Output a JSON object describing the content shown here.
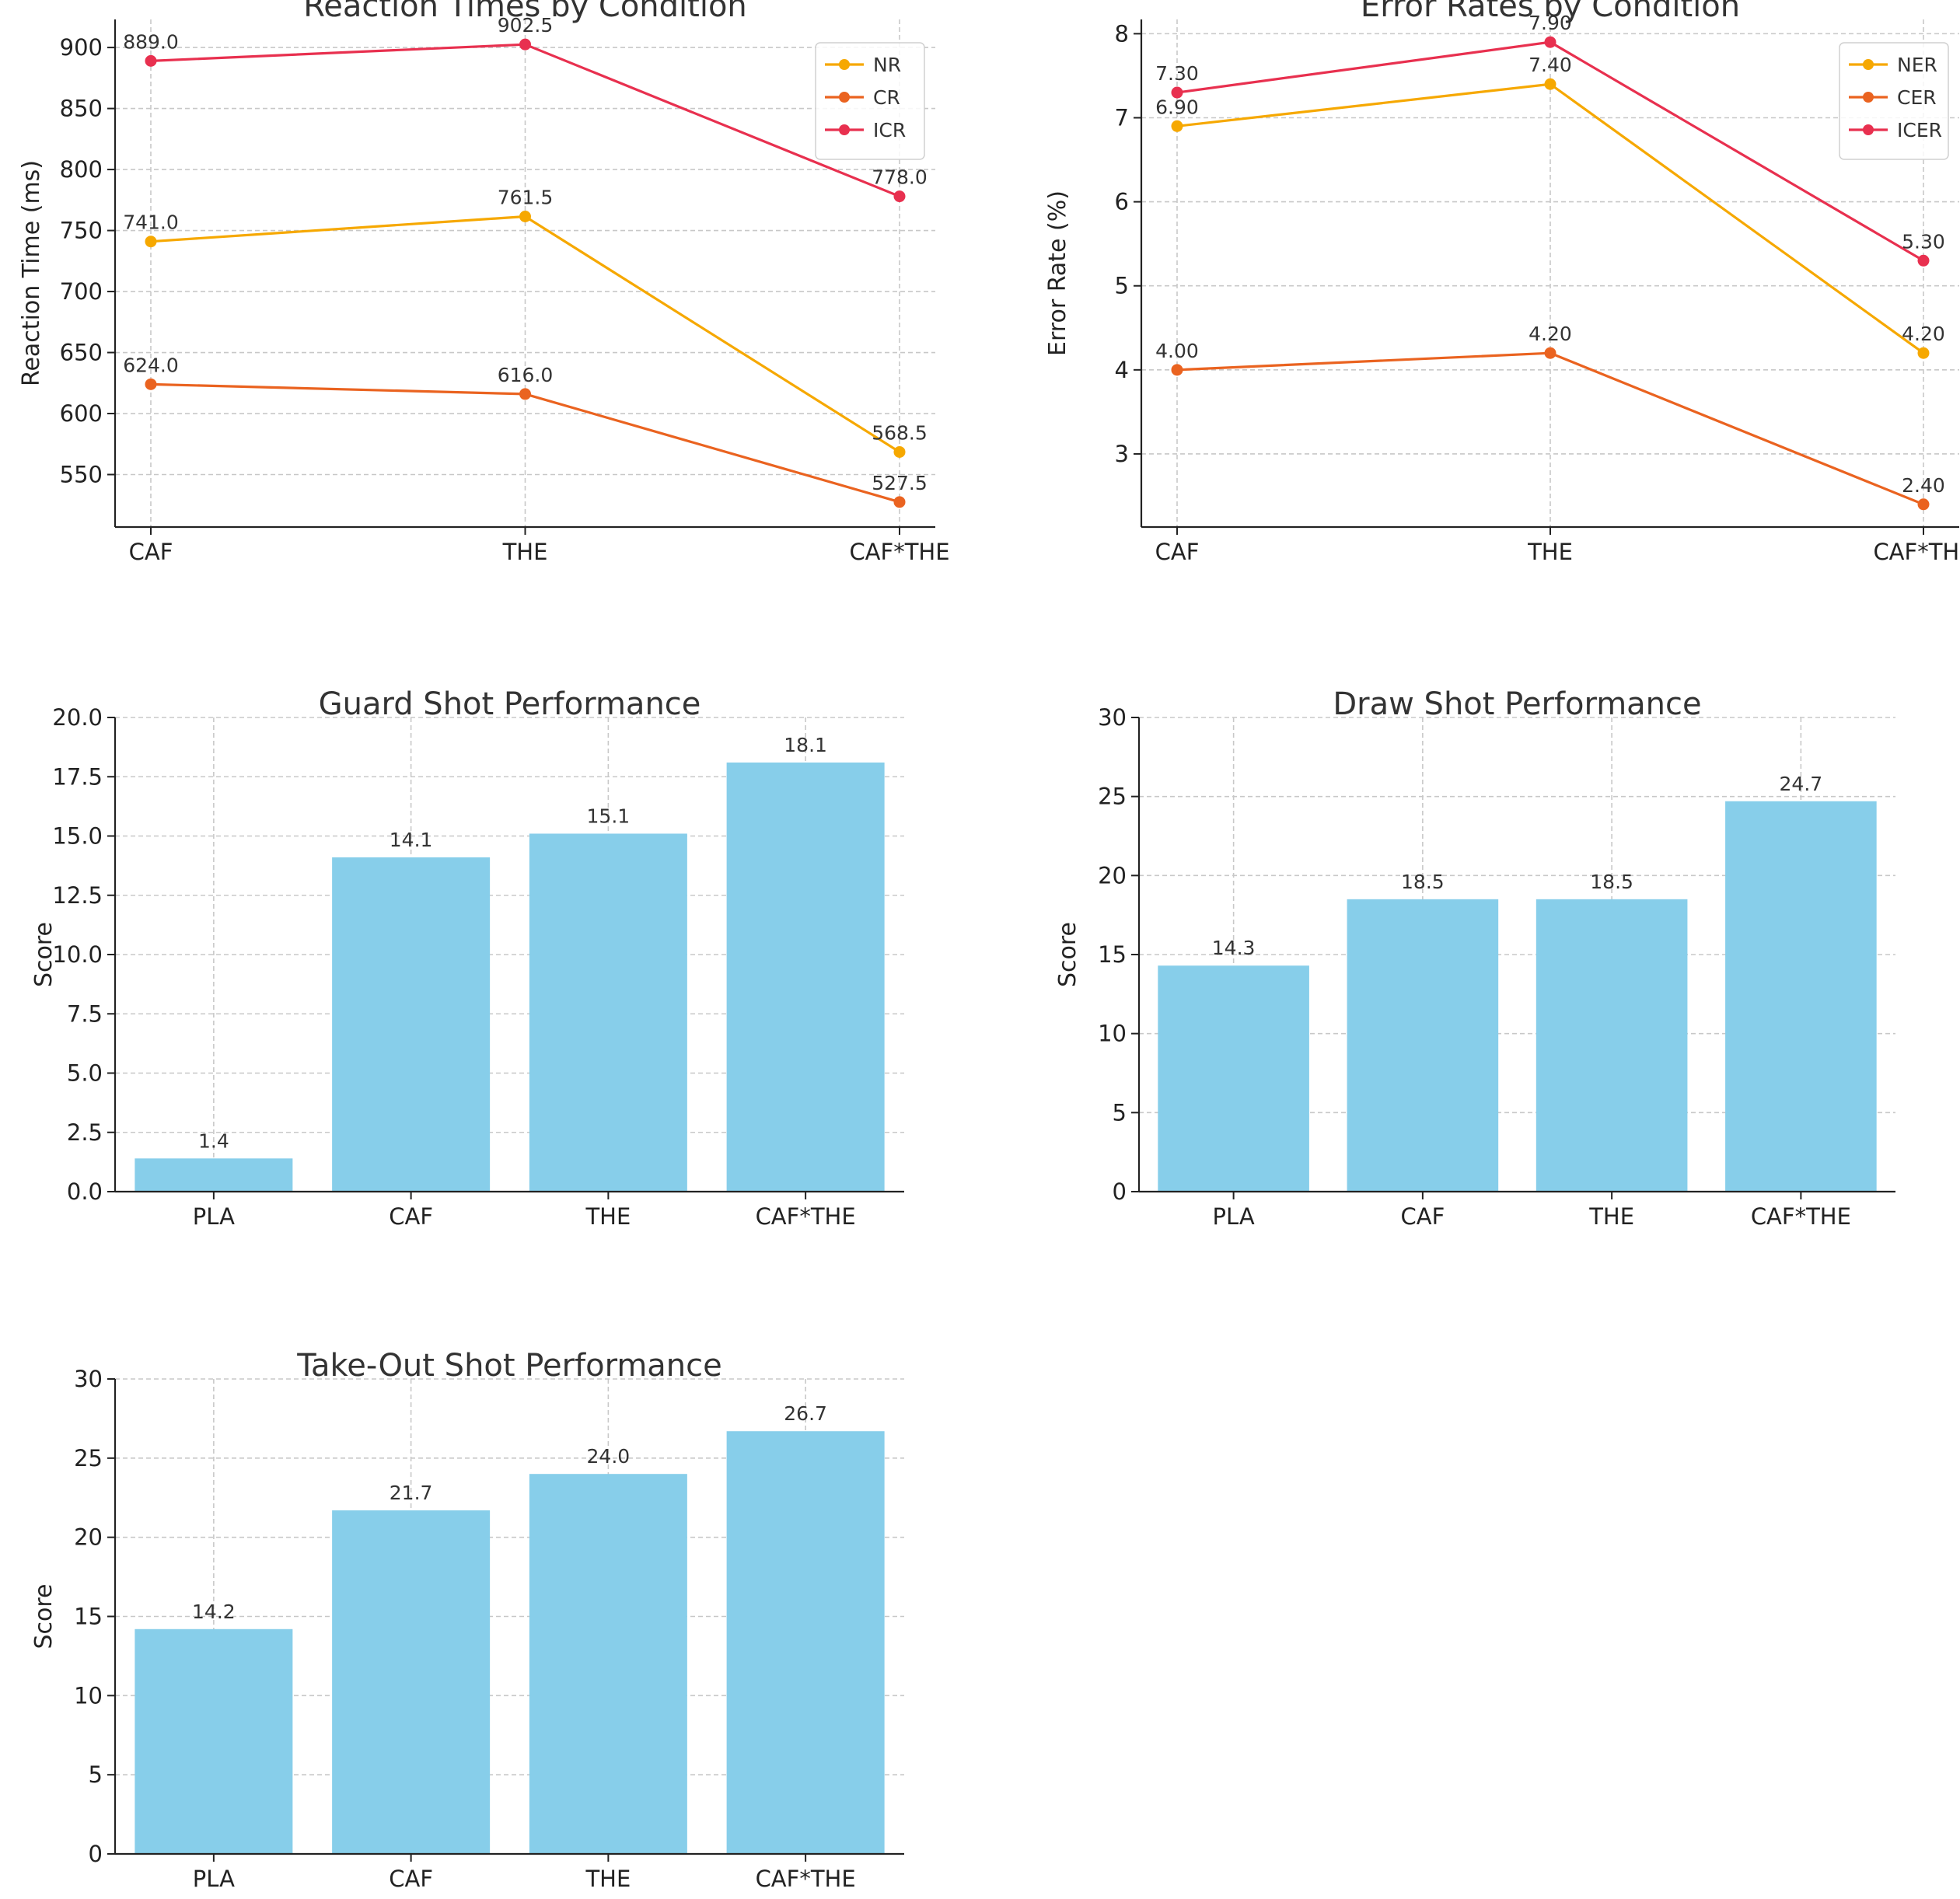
{
  "chart_data": [
    {
      "type": "line",
      "title": "Reaction Times by Condition",
      "xlabel": "",
      "ylabel": "Reaction Time (ms)",
      "categories": [
        "CAF",
        "THE",
        "CAF*THE"
      ],
      "ylim": [
        507,
        923
      ],
      "yticks": [
        550,
        600,
        650,
        700,
        750,
        800,
        850,
        900
      ],
      "tick_decimals": 0,
      "label_decimals": 1,
      "legend": "top-right",
      "series": [
        {
          "name": "NR",
          "color": "#f6a800",
          "values": [
            741.0,
            761.5,
            568.5
          ]
        },
        {
          "name": "CR",
          "color": "#ea6320",
          "values": [
            624.0,
            616.0,
            527.5
          ]
        },
        {
          "name": "ICR",
          "color": "#e8304f",
          "values": [
            889.0,
            902.5,
            778.0
          ]
        }
      ]
    },
    {
      "type": "line",
      "title": "Error Rates by Condition",
      "xlabel": "",
      "ylabel": "Error Rate (%)",
      "categories": [
        "CAF",
        "THE",
        "CAF*THE"
      ],
      "ylim": [
        2.13,
        8.17
      ],
      "yticks": [
        3,
        4,
        5,
        6,
        7,
        8
      ],
      "tick_decimals": 0,
      "label_decimals": 2,
      "legend": "top-right",
      "series": [
        {
          "name": "NER",
          "color": "#f6a800",
          "values": [
            6.9,
            7.4,
            4.2
          ]
        },
        {
          "name": "CER",
          "color": "#ea6320",
          "values": [
            4.0,
            4.2,
            2.4
          ]
        },
        {
          "name": "ICER",
          "color": "#e8304f",
          "values": [
            7.3,
            7.9,
            5.3
          ]
        }
      ]
    },
    {
      "type": "bar",
      "title": "Guard Shot Performance",
      "xlabel": "",
      "ylabel": "Score",
      "categories": [
        "PLA",
        "CAF",
        "THE",
        "CAF*THE"
      ],
      "values": [
        1.4,
        14.1,
        15.1,
        18.1
      ],
      "ylim": [
        0,
        20
      ],
      "yticks": [
        0,
        2.5,
        5,
        7.5,
        10,
        12.5,
        15,
        17.5,
        20
      ],
      "tick_decimals": 1,
      "label_decimals": 1,
      "color": "#87ceea"
    },
    {
      "type": "bar",
      "title": "Draw Shot Performance",
      "xlabel": "",
      "ylabel": "Score",
      "categories": [
        "PLA",
        "CAF",
        "THE",
        "CAF*THE"
      ],
      "values": [
        14.3,
        18.5,
        18.5,
        24.7
      ],
      "ylim": [
        0,
        30
      ],
      "yticks": [
        0,
        5,
        10,
        15,
        20,
        25,
        30
      ],
      "tick_decimals": 0,
      "label_decimals": 1,
      "color": "#87ceea"
    },
    {
      "type": "bar",
      "title": "Take-Out Shot Performance",
      "xlabel": "",
      "ylabel": "Score",
      "categories": [
        "PLA",
        "CAF",
        "THE",
        "CAF*THE"
      ],
      "values": [
        14.2,
        21.7,
        24.0,
        26.7
      ],
      "ylim": [
        0,
        30
      ],
      "yticks": [
        0,
        5,
        10,
        15,
        20,
        25,
        30
      ],
      "tick_decimals": 0,
      "label_decimals": 1,
      "color": "#87ceea"
    }
  ]
}
